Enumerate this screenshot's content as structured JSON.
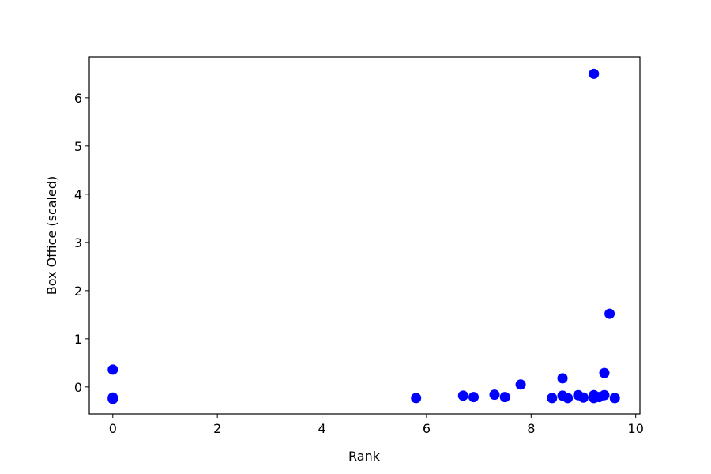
{
  "chart_data": {
    "type": "scatter",
    "title": "",
    "xlabel": "Rank",
    "ylabel": "Box Office  (scaled)",
    "xlim": [
      -0.45,
      10.08
    ],
    "ylim": [
      -0.56,
      6.85
    ],
    "xticks": [
      0,
      2,
      4,
      6,
      8,
      10
    ],
    "yticks": [
      0,
      1,
      2,
      3,
      4,
      5,
      6
    ],
    "grid": false,
    "marker_color": "#0000ff",
    "points": [
      {
        "x": 0.0,
        "y": 0.36
      },
      {
        "x": 0.0,
        "y": -0.22
      },
      {
        "x": 0.0,
        "y": -0.24
      },
      {
        "x": 0.0,
        "y": -0.25
      },
      {
        "x": 5.8,
        "y": -0.23
      },
      {
        "x": 6.7,
        "y": -0.18
      },
      {
        "x": 6.9,
        "y": -0.21
      },
      {
        "x": 7.3,
        "y": -0.16
      },
      {
        "x": 7.5,
        "y": -0.21
      },
      {
        "x": 7.8,
        "y": 0.05
      },
      {
        "x": 8.4,
        "y": -0.23
      },
      {
        "x": 8.6,
        "y": 0.18
      },
      {
        "x": 8.6,
        "y": -0.18
      },
      {
        "x": 8.7,
        "y": -0.23
      },
      {
        "x": 8.9,
        "y": -0.17
      },
      {
        "x": 9.0,
        "y": -0.22
      },
      {
        "x": 9.2,
        "y": 6.5
      },
      {
        "x": 9.2,
        "y": -0.17
      },
      {
        "x": 9.2,
        "y": -0.23
      },
      {
        "x": 9.3,
        "y": -0.21
      },
      {
        "x": 9.4,
        "y": 0.29
      },
      {
        "x": 9.4,
        "y": -0.17
      },
      {
        "x": 9.5,
        "y": 1.52
      },
      {
        "x": 9.6,
        "y": -0.23
      }
    ]
  }
}
